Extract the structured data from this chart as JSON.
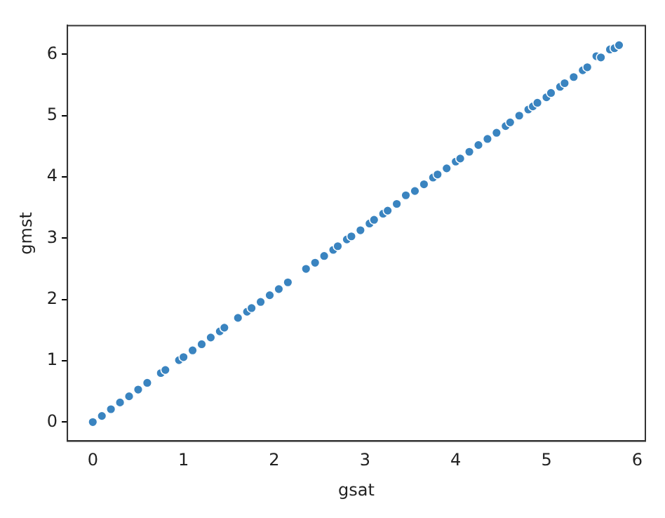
{
  "chart_data": {
    "type": "scatter",
    "xlabel": "gsat",
    "ylabel": "gmst",
    "xlim": [
      -0.28,
      6.09
    ],
    "ylim": [
      -0.31,
      6.47
    ],
    "xticks": [
      0,
      1,
      2,
      3,
      4,
      5,
      6
    ],
    "yticks": [
      0,
      1,
      2,
      3,
      4,
      5,
      6
    ],
    "grid": false,
    "legend": false,
    "marker": "circle",
    "series": [
      {
        "color": "#3a84c0",
        "x": [
          0,
          0.1,
          0.2,
          0.3,
          0.4,
          0.5,
          0.6,
          0.75,
          0.8,
          0.95,
          1.0,
          1.1,
          1.2,
          1.3,
          1.4,
          1.45,
          1.6,
          1.7,
          1.75,
          1.85,
          1.95,
          2.05,
          2.15,
          2.35,
          2.45,
          2.55,
          2.65,
          2.7,
          2.8,
          2.85,
          2.95,
          3.05,
          3.1,
          3.2,
          3.25,
          3.35,
          3.45,
          3.55,
          3.65,
          3.75,
          3.8,
          3.9,
          4.0,
          4.05,
          4.15,
          4.25,
          4.35,
          4.45,
          4.55,
          4.6,
          4.7,
          4.8,
          4.85,
          4.9,
          5.0,
          5.05,
          5.15,
          5.2,
          5.3,
          5.4,
          5.45,
          5.55,
          5.6,
          5.7,
          5.75,
          5.8
        ],
        "values": [
          0,
          0.1,
          0.21,
          0.32,
          0.42,
          0.53,
          0.64,
          0.8,
          0.85,
          1.01,
          1.06,
          1.17,
          1.27,
          1.38,
          1.48,
          1.54,
          1.7,
          1.8,
          1.86,
          1.96,
          2.07,
          2.17,
          2.28,
          2.5,
          2.6,
          2.71,
          2.81,
          2.87,
          2.98,
          3.03,
          3.13,
          3.24,
          3.3,
          3.4,
          3.45,
          3.56,
          3.7,
          3.77,
          3.88,
          3.99,
          4.04,
          4.14,
          4.25,
          4.3,
          4.41,
          4.52,
          4.62,
          4.72,
          4.83,
          4.89,
          5.0,
          5.1,
          5.15,
          5.21,
          5.3,
          5.37,
          5.47,
          5.53,
          5.63,
          5.74,
          5.79,
          5.97,
          5.95,
          6.08,
          6.1,
          6.15
        ]
      }
    ]
  }
}
